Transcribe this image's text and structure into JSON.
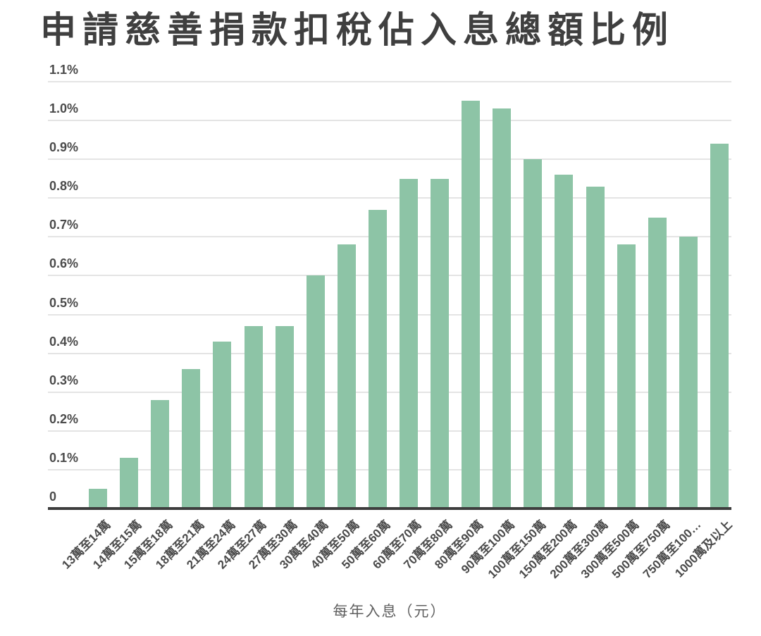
{
  "chart_data": {
    "type": "bar",
    "title": "申請慈善捐款扣稅佔入息總額比例",
    "xlabel": "每年入息（元）",
    "ylabel": "",
    "ylim": [
      0,
      1.1
    ],
    "value_unit": "percent",
    "grid": true,
    "legend": "none",
    "bar_color": "#8dc4a6",
    "axis_line_color": "#3d3d3d",
    "gridline_color": "#e4e4e4",
    "title_color": "#3f3f3f",
    "yticks": [
      {
        "label": "1.1%",
        "value": 1.1
      },
      {
        "label": "1.0%",
        "value": 1.0
      },
      {
        "label": "0.9%",
        "value": 0.9
      },
      {
        "label": "0.8%",
        "value": 0.8
      },
      {
        "label": "0.7%",
        "value": 0.7
      },
      {
        "label": "0.6%",
        "value": 0.6
      },
      {
        "label": "0.5%",
        "value": 0.5
      },
      {
        "label": "0.4%",
        "value": 0.4
      },
      {
        "label": "0.3%",
        "value": 0.3
      },
      {
        "label": "0.2%",
        "value": 0.2
      },
      {
        "label": "0.1%",
        "value": 0.1
      },
      {
        "label": "0",
        "value": 0
      }
    ],
    "categories": [
      "13萬至14萬",
      "14萬至15萬",
      "15萬至18萬",
      "18萬至21萬",
      "21萬至24萬",
      "24萬至27萬",
      "27萬至30萬",
      "30萬至40萬",
      "40萬至50萬",
      "50萬至60萬",
      "60萬至70萬",
      "70萬至80萬",
      "80萬至90萬",
      "90萬至100萬",
      "100萬至150萬",
      "150萬至200萬",
      "200萬至300萬",
      "300萬至500萬",
      "500萬至750萬",
      "750萬至100…",
      "1000萬及以上"
    ],
    "values": [
      0.05,
      0.13,
      0.28,
      0.36,
      0.43,
      0.47,
      0.47,
      0.6,
      0.68,
      0.77,
      0.85,
      0.85,
      1.05,
      1.03,
      0.9,
      0.86,
      0.83,
      0.68,
      0.75,
      0.7,
      0.94
    ]
  }
}
